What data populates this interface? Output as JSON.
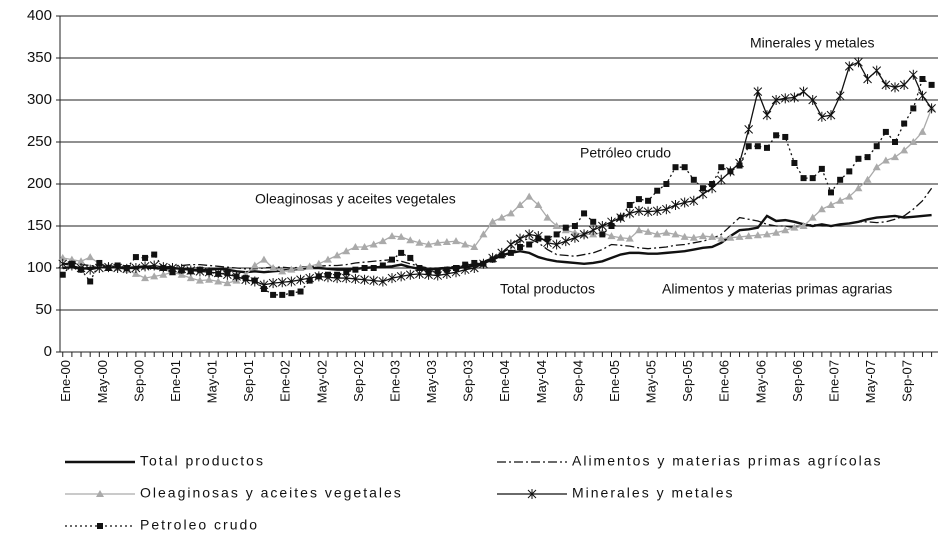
{
  "chart_data": {
    "type": "line",
    "categories": [
      "Ene-00",
      null,
      null,
      null,
      "May-00",
      null,
      null,
      null,
      "Sep-00",
      null,
      null,
      null,
      "Ene-01",
      null,
      null,
      null,
      "May-01",
      null,
      null,
      null,
      "Sep-01",
      null,
      null,
      null,
      "Ene-02",
      null,
      null,
      null,
      "May-02",
      null,
      null,
      null,
      "Sep-02",
      null,
      null,
      null,
      "Ene-03",
      null,
      null,
      null,
      "May-03",
      null,
      null,
      null,
      "Sep-03",
      null,
      null,
      null,
      "Ene-04",
      null,
      null,
      null,
      "May-04",
      null,
      null,
      null,
      "Sep-04",
      null,
      null,
      null,
      "Ene-05",
      null,
      null,
      null,
      "May-05",
      null,
      null,
      null,
      "Sep-05",
      null,
      null,
      null,
      "Ene-06",
      null,
      null,
      null,
      "May-06",
      null,
      null,
      null,
      "Sep-06",
      null,
      null,
      null,
      "Ene-07",
      null,
      null,
      null,
      "May-07",
      null,
      null,
      null,
      "Sep-07",
      null,
      null,
      null
    ],
    "ylim": [
      0,
      400
    ],
    "yticks": [
      0,
      50,
      100,
      150,
      200,
      250,
      300,
      350,
      400
    ],
    "grid": true,
    "legend": "bottom",
    "annotations": [
      "Minerales y metales",
      "Petróleo crudo",
      "Oleaginosas y aceites vegetales",
      "Total productos",
      "Alimentos y materias primas agrarias"
    ],
    "series": [
      {
        "name": "Total productos",
        "color": "#111111",
        "line_style": "solid",
        "values": [
          100,
          101,
          99,
          100,
          101,
          102,
          101,
          100,
          101,
          102,
          100,
          99,
          100,
          99,
          98,
          97,
          98,
          99,
          98,
          96,
          95,
          96,
          95,
          96,
          97,
          98,
          99,
          100,
          100,
          99,
          98,
          98,
          99,
          100,
          101,
          101,
          102,
          104,
          101,
          99,
          98,
          99,
          100,
          100,
          101,
          103,
          106,
          110,
          115,
          118,
          120,
          118,
          113,
          110,
          108,
          107,
          106,
          105,
          106,
          108,
          112,
          116,
          118,
          118,
          117,
          117,
          118,
          119,
          120,
          122,
          124,
          125,
          130,
          138,
          145,
          146,
          148,
          162,
          156,
          157,
          155,
          152,
          150,
          152,
          150,
          152,
          153,
          155,
          158,
          160,
          161,
          162,
          160,
          161,
          162,
          163
        ]
      },
      {
        "name": "Alimentos y materias primas agrícolas",
        "color": "#111111",
        "line_style": "dashdot",
        "values": [
          105,
          106,
          104,
          103,
          102,
          101,
          100,
          100,
          99,
          99,
          100,
          101,
          102,
          103,
          104,
          104,
          103,
          102,
          101,
          100,
          99,
          99,
          100,
          101,
          101,
          100,
          101,
          102,
          102,
          103,
          103,
          104,
          106,
          107,
          108,
          109,
          110,
          108,
          105,
          102,
          100,
          100,
          101,
          102,
          103,
          105,
          108,
          112,
          118,
          124,
          132,
          135,
          130,
          122,
          116,
          115,
          114,
          116,
          118,
          122,
          128,
          127,
          126,
          124,
          123,
          124,
          125,
          127,
          128,
          130,
          132,
          135,
          140,
          150,
          160,
          158,
          156,
          152,
          150,
          150,
          148,
          150,
          152,
          150,
          150,
          152,
          153,
          155,
          155,
          154,
          155,
          158,
          162,
          170,
          180,
          195
        ]
      },
      {
        "name": "Oleaginosas y aceites vegetales",
        "color": "#aaaaaa",
        "line_style": "solid",
        "marker": "triangle",
        "values": [
          112,
          110,
          108,
          113,
          105,
          102,
          100,
          98,
          93,
          88,
          90,
          92,
          95,
          92,
          88,
          85,
          86,
          84,
          82,
          85,
          92,
          103,
          110,
          100,
          96,
          98,
          100,
          102,
          105,
          110,
          115,
          120,
          125,
          125,
          128,
          132,
          138,
          137,
          133,
          130,
          128,
          130,
          131,
          132,
          128,
          125,
          140,
          155,
          160,
          165,
          175,
          185,
          175,
          160,
          150,
          145,
          142,
          140,
          140,
          142,
          138,
          136,
          135,
          145,
          143,
          140,
          142,
          140,
          137,
          136,
          138,
          137,
          135,
          136,
          137,
          138,
          139,
          140,
          142,
          145,
          148,
          150,
          160,
          170,
          175,
          180,
          185,
          195,
          205,
          220,
          228,
          232,
          240,
          250,
          262,
          290
        ]
      },
      {
        "name": "Minerales y metales",
        "color": "#111111",
        "line_style": "solid",
        "marker": "star",
        "values": [
          105,
          103,
          100,
          98,
          100,
          101,
          100,
          99,
          100,
          102,
          103,
          101,
          100,
          99,
          97,
          96,
          95,
          94,
          92,
          90,
          86,
          84,
          80,
          82,
          83,
          84,
          86,
          88,
          90,
          89,
          88,
          88,
          87,
          86,
          85,
          84,
          88,
          90,
          92,
          93,
          92,
          91,
          93,
          95,
          98,
          100,
          105,
          112,
          118,
          128,
          135,
          140,
          138,
          130,
          128,
          132,
          136,
          140,
          145,
          150,
          155,
          160,
          165,
          168,
          167,
          168,
          170,
          175,
          178,
          180,
          188,
          195,
          205,
          215,
          225,
          265,
          310,
          282,
          300,
          302,
          303,
          310,
          300,
          280,
          282,
          305,
          340,
          345,
          325,
          335,
          318,
          315,
          318,
          330,
          305,
          290
        ]
      },
      {
        "name": "Petroleo crudo",
        "color": "#111111",
        "line_style": "dotted",
        "marker": "square",
        "values": [
          92,
          105,
          98,
          84,
          106,
          100,
          103,
          100,
          113,
          112,
          116,
          100,
          95,
          97,
          96,
          98,
          95,
          93,
          94,
          90,
          88,
          85,
          75,
          68,
          68,
          70,
          72,
          85,
          90,
          92,
          92,
          95,
          98,
          100,
          100,
          103,
          110,
          118,
          112,
          100,
          95,
          96,
          98,
          100,
          104,
          106,
          105,
          110,
          115,
          118,
          125,
          128,
          135,
          135,
          140,
          148,
          150,
          165,
          155,
          140,
          150,
          160,
          175,
          182,
          180,
          192,
          200,
          220,
          220,
          205,
          195,
          200,
          220,
          215,
          222,
          245,
          245,
          243,
          258,
          256,
          225,
          207,
          207,
          218,
          190,
          205,
          215,
          230,
          232,
          245,
          262,
          250,
          272,
          290,
          325,
          318
        ]
      }
    ]
  }
}
